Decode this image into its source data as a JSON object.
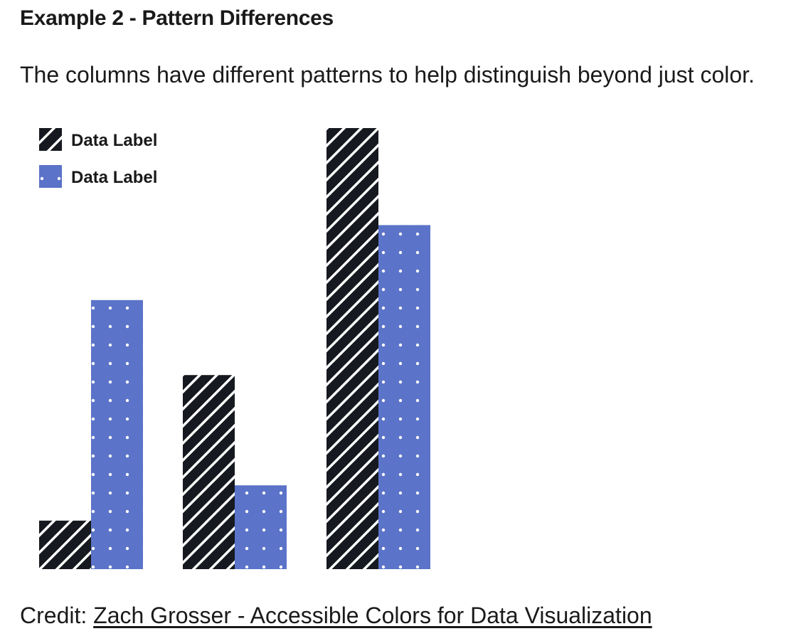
{
  "heading": "Example 2 - Pattern Differences",
  "intro": "The columns have different patterns to help distinguish beyond just color.",
  "credit": {
    "prefix": "Credit: ",
    "link_text": "Zach Grosser - Accessible Colors for Data Visualization"
  },
  "colors": {
    "series_1": "#16191f",
    "series_2": "#5b73c8",
    "pattern": "#ffffff"
  },
  "chart_data": {
    "type": "bar",
    "title": "",
    "xlabel": "",
    "ylabel": "",
    "categories": [
      "",
      "",
      ""
    ],
    "ylim": [
      0,
      100
    ],
    "grid": false,
    "legend_position": "top-left",
    "series": [
      {
        "name": "Data Label",
        "pattern": "diagonal-stripes",
        "values": [
          11,
          44,
          100
        ]
      },
      {
        "name": "Data Label",
        "pattern": "dots",
        "values": [
          61,
          19,
          78
        ]
      }
    ]
  }
}
